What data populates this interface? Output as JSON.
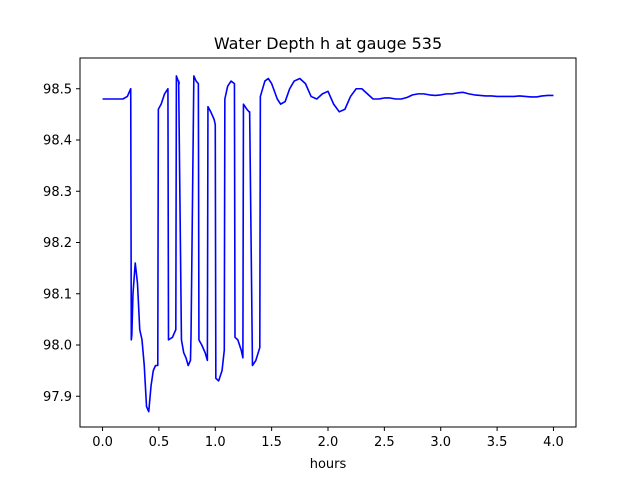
{
  "chart_data": {
    "type": "line",
    "title": "Water Depth h at gauge 535",
    "xlabel": "hours",
    "ylabel": "",
    "xlim": [
      -0.2,
      4.2
    ],
    "ylim": [
      97.84,
      98.56
    ],
    "xticks": [
      0.0,
      0.5,
      1.0,
      1.5,
      2.0,
      2.5,
      3.0,
      3.5,
      4.0
    ],
    "xtick_labels": [
      "0.0",
      "0.5",
      "1.0",
      "1.5",
      "2.0",
      "2.5",
      "3.0",
      "3.5",
      "4.0"
    ],
    "yticks": [
      97.9,
      98.0,
      98.1,
      98.2,
      98.3,
      98.4,
      98.5
    ],
    "ytick_labels": [
      "97.9",
      "98.0",
      "98.1",
      "98.2",
      "98.3",
      "98.4",
      "98.5"
    ],
    "grid": false,
    "series": [
      {
        "color": "#0000ff",
        "x": [
          0.0,
          0.1,
          0.18,
          0.22,
          0.25,
          0.255,
          0.26,
          0.27,
          0.29,
          0.31,
          0.33,
          0.35,
          0.37,
          0.39,
          0.41,
          0.43,
          0.45,
          0.47,
          0.49,
          0.495,
          0.52,
          0.55,
          0.58,
          0.585,
          0.62,
          0.65,
          0.655,
          0.68,
          0.675,
          0.7,
          0.72,
          0.74,
          0.76,
          0.78,
          0.785,
          0.81,
          0.83,
          0.85,
          0.855,
          0.88,
          0.91,
          0.93,
          0.935,
          0.96,
          0.99,
          1.0,
          1.005,
          1.03,
          1.06,
          1.08,
          1.085,
          1.11,
          1.14,
          1.17,
          1.175,
          1.2,
          1.23,
          1.245,
          1.25,
          1.28,
          1.3,
          1.305,
          1.33,
          1.36,
          1.395,
          1.4,
          1.44,
          1.47,
          1.5,
          1.55,
          1.58,
          1.62,
          1.66,
          1.7,
          1.75,
          1.8,
          1.85,
          1.9,
          1.95,
          2.0,
          2.05,
          2.1,
          2.15,
          2.2,
          2.25,
          2.3,
          2.35,
          2.4,
          2.45,
          2.5,
          2.55,
          2.6,
          2.65,
          2.7,
          2.75,
          2.8,
          2.85,
          2.9,
          2.95,
          3.0,
          3.05,
          3.1,
          3.15,
          3.2,
          3.25,
          3.3,
          3.35,
          3.4,
          3.45,
          3.5,
          3.55,
          3.6,
          3.65,
          3.7,
          3.75,
          3.8,
          3.85,
          3.9,
          3.95,
          4.0
        ],
        "y": [
          98.48,
          98.48,
          98.48,
          98.485,
          98.5,
          98.01,
          98.02,
          98.1,
          98.16,
          98.12,
          98.03,
          98.01,
          97.96,
          97.88,
          97.87,
          97.92,
          97.95,
          97.96,
          97.96,
          98.46,
          98.47,
          98.49,
          98.5,
          98.01,
          98.015,
          98.03,
          98.525,
          98.51,
          98.515,
          98.01,
          97.985,
          97.975,
          97.96,
          97.97,
          98.02,
          98.525,
          98.515,
          98.51,
          98.01,
          98.0,
          97.985,
          97.97,
          98.465,
          98.455,
          98.44,
          98.43,
          97.935,
          97.93,
          97.95,
          97.99,
          98.48,
          98.505,
          98.515,
          98.51,
          98.015,
          98.01,
          97.99,
          97.975,
          98.47,
          98.46,
          98.455,
          98.455,
          97.96,
          97.97,
          97.995,
          98.485,
          98.515,
          98.52,
          98.51,
          98.48,
          98.47,
          98.475,
          98.5,
          98.515,
          98.52,
          98.51,
          98.485,
          98.48,
          98.49,
          98.495,
          98.47,
          98.455,
          98.46,
          98.485,
          98.5,
          98.5,
          98.49,
          98.48,
          98.48,
          98.482,
          98.482,
          98.48,
          98.48,
          98.483,
          98.488,
          98.49,
          98.49,
          98.488,
          98.487,
          98.488,
          98.49,
          98.49,
          98.492,
          98.493,
          98.49,
          98.488,
          98.487,
          98.486,
          98.486,
          98.485,
          98.485,
          98.485,
          98.485,
          98.486,
          98.485,
          98.484,
          98.484,
          98.486,
          98.487,
          98.487
        ]
      }
    ]
  }
}
